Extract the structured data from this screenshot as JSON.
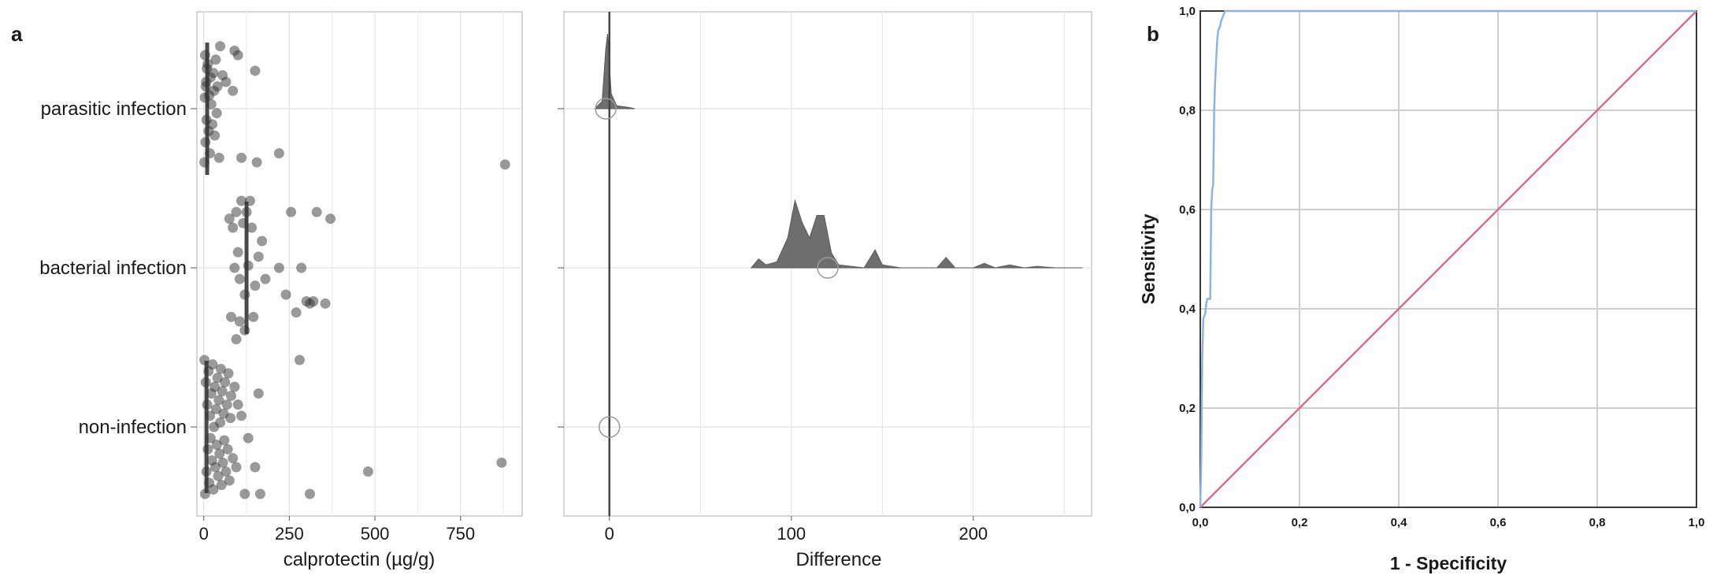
{
  "panel_a_label": "a",
  "panel_b_label": "b",
  "chart_data": [
    {
      "type": "scatter",
      "panel": "a-left",
      "xlabel": "calprotectin (µg/g)",
      "ylabel": "",
      "xlim": [
        -20,
        930
      ],
      "xticks": [
        0,
        250,
        500,
        750
      ],
      "categories": [
        "non-infection",
        "bacterial infection",
        "parasitic infection"
      ],
      "medians": {
        "non-infection": 8,
        "bacterial infection": 125,
        "parasitic infection": 10
      },
      "points": {
        "parasitic infection": [
          [
            2,
            -0.24
          ],
          [
            4,
            0.24
          ],
          [
            6,
            0.1
          ],
          [
            8,
            -0.05
          ],
          [
            9,
            0.18
          ],
          [
            3,
            0.05
          ],
          [
            5,
            -0.15
          ],
          [
            7,
            0.12
          ],
          [
            12,
            0.2
          ],
          [
            14,
            -0.1
          ],
          [
            16,
            0.06
          ],
          [
            18,
            -0.2
          ],
          [
            20,
            0.14
          ],
          [
            22,
            0.02
          ],
          [
            25,
            -0.07
          ],
          [
            28,
            0.16
          ],
          [
            30,
            0.08
          ],
          [
            32,
            -0.12
          ],
          [
            35,
            0.22
          ],
          [
            38,
            -0.02
          ],
          [
            40,
            0.1
          ],
          [
            45,
            -0.22
          ],
          [
            48,
            0.28
          ],
          [
            55,
            0.15
          ],
          [
            65,
            0.12
          ],
          [
            85,
            0.08
          ],
          [
            90,
            0.26
          ],
          [
            100,
            0.24
          ],
          [
            150,
            0.17
          ],
          [
            110,
            -0.22
          ],
          [
            155,
            -0.24
          ],
          [
            220,
            -0.2
          ],
          [
            880,
            -0.25
          ]
        ],
        "bacterial infection": [
          [
            75,
            0.22
          ],
          [
            85,
            0.18
          ],
          [
            95,
            0.25
          ],
          [
            100,
            0.07
          ],
          [
            105,
            -0.05
          ],
          [
            110,
            0.3
          ],
          [
            115,
            0.2
          ],
          [
            120,
            -0.12
          ],
          [
            125,
            0.25
          ],
          [
            130,
            0.01
          ],
          [
            135,
            0.3
          ],
          [
            140,
            0.18
          ],
          [
            145,
            -0.22
          ],
          [
            150,
            -0.08
          ],
          [
            160,
            0.05
          ],
          [
            170,
            0.12
          ],
          [
            80,
            -0.22
          ],
          [
            95,
            -0.32
          ],
          [
            120,
            -0.28
          ],
          [
            180,
            -0.05
          ],
          [
            220,
            0.0
          ],
          [
            240,
            -0.12
          ],
          [
            255,
            0.25
          ],
          [
            270,
            -0.2
          ],
          [
            285,
            0.0
          ],
          [
            300,
            -0.15
          ],
          [
            310,
            -0.16
          ],
          [
            320,
            -0.15
          ],
          [
            330,
            0.25
          ],
          [
            355,
            -0.16
          ],
          [
            370,
            0.22
          ],
          [
            90,
            0.0
          ],
          [
            105,
            -0.24
          ]
        ],
        "non-infection": [
          [
            2,
            0.3
          ],
          [
            4,
            -0.3
          ],
          [
            6,
            0.2
          ],
          [
            8,
            -0.2
          ],
          [
            10,
            0.1
          ],
          [
            12,
            -0.1
          ],
          [
            14,
            0.25
          ],
          [
            16,
            -0.25
          ],
          [
            18,
            0.05
          ],
          [
            20,
            -0.05
          ],
          [
            22,
            0.15
          ],
          [
            24,
            -0.15
          ],
          [
            26,
            0.28
          ],
          [
            28,
            -0.28
          ],
          [
            30,
            0.0
          ],
          [
            32,
            0.18
          ],
          [
            34,
            -0.18
          ],
          [
            36,
            0.08
          ],
          [
            38,
            -0.08
          ],
          [
            40,
            0.22
          ],
          [
            42,
            -0.22
          ],
          [
            44,
            0.12
          ],
          [
            46,
            -0.12
          ],
          [
            48,
            0.02
          ],
          [
            50,
            0.26
          ],
          [
            52,
            -0.26
          ],
          [
            54,
            0.16
          ],
          [
            56,
            -0.16
          ],
          [
            58,
            0.06
          ],
          [
            60,
            -0.06
          ],
          [
            62,
            0.2
          ],
          [
            65,
            -0.2
          ],
          [
            68,
            0.1
          ],
          [
            70,
            -0.1
          ],
          [
            72,
            0.24
          ],
          [
            75,
            -0.24
          ],
          [
            78,
            0.04
          ],
          [
            80,
            0.14
          ],
          [
            85,
            -0.14
          ],
          [
            90,
            0.18
          ],
          [
            95,
            -0.18
          ],
          [
            100,
            0.1
          ],
          [
            110,
            0.05
          ],
          [
            130,
            -0.05
          ],
          [
            160,
            0.15
          ],
          [
            120,
            -0.3
          ],
          [
            150,
            -0.18
          ],
          [
            165,
            -0.3
          ],
          [
            280,
            0.3
          ],
          [
            310,
            -0.3
          ],
          [
            480,
            -0.2
          ],
          [
            870,
            -0.16
          ]
        ]
      }
    },
    {
      "type": "area",
      "panel": "a-right",
      "xlabel": "Difference",
      "xlim": [
        -25,
        265
      ],
      "xticks": [
        0,
        100,
        200
      ],
      "categories": [
        "non-infection",
        "bacterial infection",
        "parasitic infection"
      ],
      "circle_values": {
        "non-infection": 0,
        "bacterial infection": 120,
        "parasitic infection": -2
      },
      "densities": {
        "bacterial infection": [
          [
            78,
            0
          ],
          [
            82,
            0.06
          ],
          [
            86,
            0.02
          ],
          [
            92,
            0.04
          ],
          [
            98,
            0.2
          ],
          [
            102,
            0.45
          ],
          [
            106,
            0.3
          ],
          [
            110,
            0.2
          ],
          [
            114,
            0.35
          ],
          [
            118,
            0.35
          ],
          [
            122,
            0.1
          ],
          [
            126,
            0.02
          ],
          [
            140,
            0
          ],
          [
            146,
            0.12
          ],
          [
            150,
            0.02
          ],
          [
            160,
            0
          ],
          [
            180,
            0
          ],
          [
            185,
            0.07
          ],
          [
            190,
            0
          ],
          [
            200,
            0
          ],
          [
            206,
            0.03
          ],
          [
            212,
            0
          ],
          [
            220,
            0.02
          ],
          [
            228,
            0
          ],
          [
            235,
            0.01
          ],
          [
            245,
            0
          ],
          [
            260,
            0
          ]
        ],
        "parasitic infection": [
          [
            -8,
            0
          ],
          [
            -4,
            0.05
          ],
          [
            -2,
            0.4
          ],
          [
            -1,
            0.5
          ],
          [
            0,
            0.3
          ],
          [
            1,
            0.1
          ],
          [
            4,
            0.02
          ],
          [
            10,
            0.01
          ],
          [
            14,
            0
          ]
        ],
        "non-infection": []
      }
    },
    {
      "type": "line",
      "panel": "b",
      "xlabel": "1 - Specificity",
      "ylabel": "Sensitivity",
      "xlim": [
        0,
        1
      ],
      "ylim": [
        0,
        1
      ],
      "xticks": [
        "0,0",
        "0,2",
        "0,4",
        "0,6",
        "0,8",
        "1,0"
      ],
      "yticks": [
        "0,0",
        "0,2",
        "0,4",
        "0,6",
        "0,8",
        "1,0"
      ],
      "series": [
        {
          "color": "#8fb3db",
          "points": [
            [
              0,
              0
            ],
            [
              0.002,
              0.1
            ],
            [
              0.004,
              0.3
            ],
            [
              0.006,
              0.38
            ],
            [
              0.01,
              0.39
            ],
            [
              0.012,
              0.41
            ],
            [
              0.014,
              0.42
            ],
            [
              0.02,
              0.42
            ],
            [
              0.022,
              0.6
            ],
            [
              0.024,
              0.64
            ],
            [
              0.026,
              0.65
            ],
            [
              0.028,
              0.8
            ],
            [
              0.03,
              0.86
            ],
            [
              0.032,
              0.9
            ],
            [
              0.034,
              0.94
            ],
            [
              0.036,
              0.96
            ],
            [
              0.04,
              0.97
            ],
            [
              0.042,
              0.98
            ],
            [
              0.046,
              0.99
            ],
            [
              0.05,
              1.0
            ],
            [
              1,
              1
            ]
          ]
        },
        {
          "color": "#d0708f",
          "points": [
            [
              0,
              0
            ],
            [
              1,
              1
            ]
          ]
        }
      ]
    }
  ]
}
